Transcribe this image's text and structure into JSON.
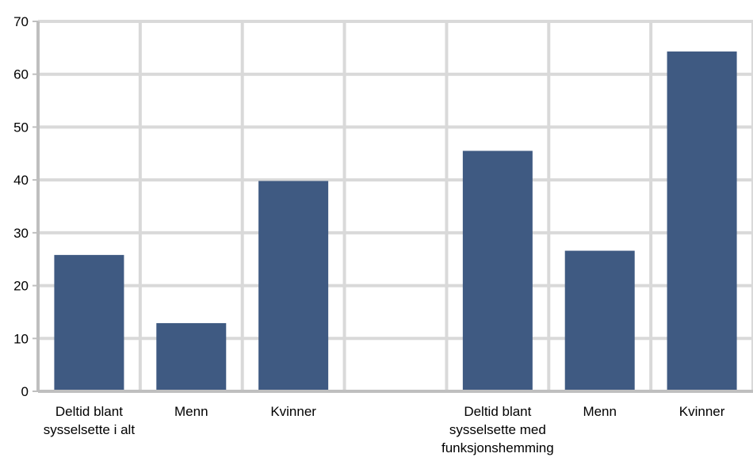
{
  "chart_data": {
    "type": "bar",
    "categories": [
      [
        "Deltid blant",
        "sysselsette i alt"
      ],
      [
        "Menn"
      ],
      [
        "Kvinner"
      ],
      [],
      [
        "Deltid blant",
        "sysselsette med",
        "funksjonshemming"
      ],
      [
        "Menn"
      ],
      [
        "Kvinner"
      ]
    ],
    "values": [
      25.8,
      12.9,
      39.8,
      null,
      45.5,
      26.6,
      64.3
    ],
    "ylim": [
      0,
      70
    ],
    "yticks": [
      "0",
      "10",
      "20",
      "30",
      "40",
      "50",
      "60",
      "70"
    ],
    "grid": true,
    "colors": {
      "bar": "#3f5a82",
      "grid": "#d9d9d9",
      "axis": "#bfbfbf"
    }
  }
}
